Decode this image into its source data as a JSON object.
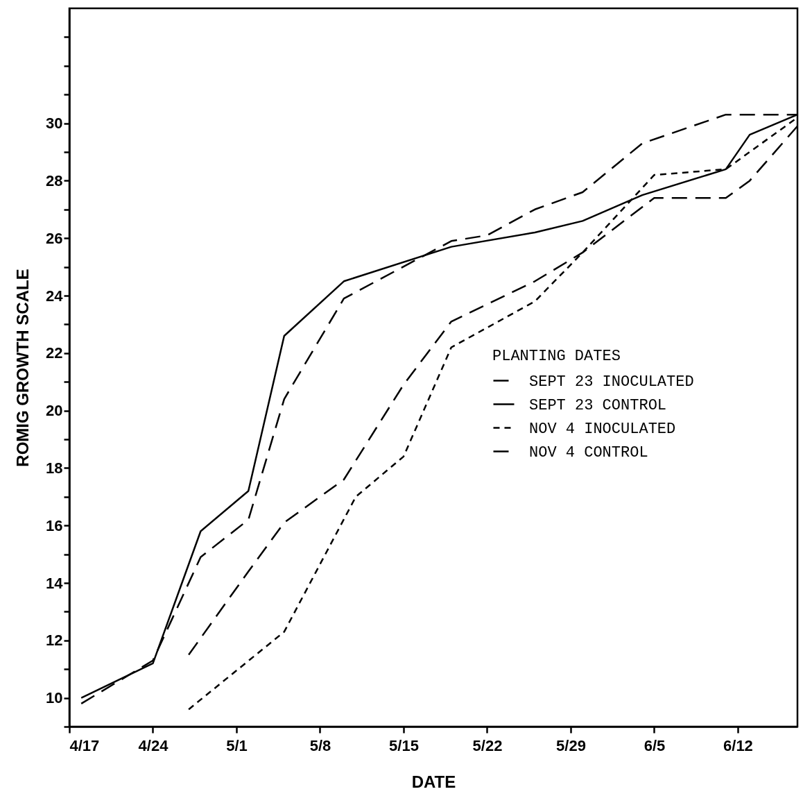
{
  "chart_data": {
    "type": "line",
    "xlabel": "DATE",
    "ylabel": "ROMIG GROWTH SCALE",
    "legend_title": "PLANTING DATES",
    "legend": "right",
    "grid": false,
    "marker": "none",
    "xlim": [
      "--04-17",
      "--06-17"
    ],
    "xticks": [
      {
        "value": "--04-17",
        "label": "4/17"
      },
      {
        "value": "--04-24",
        "label": "4/24"
      },
      {
        "value": "--05-01",
        "label": "5/1"
      },
      {
        "value": "--05-08",
        "label": "5/8"
      },
      {
        "value": "--05-15",
        "label": "5/15"
      },
      {
        "value": "--05-22",
        "label": "5/22"
      },
      {
        "value": "--05-29",
        "label": "5/29"
      },
      {
        "value": "--06-05",
        "label": "6/5"
      },
      {
        "value": "--06-12",
        "label": "6/12"
      }
    ],
    "ylim": [
      9,
      34
    ],
    "yticks": [
      {
        "value": 9,
        "label": null
      },
      10,
      {
        "value": 11,
        "label": null
      },
      12,
      {
        "value": 13,
        "label": null
      },
      14,
      {
        "value": 15,
        "label": null
      },
      16,
      {
        "value": 17,
        "label": null
      },
      18,
      {
        "value": 19,
        "label": null
      },
      20,
      {
        "value": 21,
        "label": null
      },
      22,
      {
        "value": 23,
        "label": null
      },
      24,
      {
        "value": 25,
        "label": null
      },
      26,
      {
        "value": 27,
        "label": null
      },
      28,
      {
        "value": 29,
        "label": null
      },
      30,
      {
        "value": 31,
        "label": null
      },
      {
        "value": 32,
        "label": null
      },
      {
        "value": 33,
        "label": null
      }
    ],
    "series": [
      {
        "name": "SEPT 23 INOCULATED",
        "color": "#000000",
        "line_style": "dashed",
        "x": [
          "--04-18",
          "--04-24",
          "--04-28",
          "--05-02",
          "--05-05",
          "--05-10",
          "--05-19",
          "--05-22",
          "--05-26",
          "--05-30",
          "--06-04",
          "--06-11",
          "--06-17"
        ],
        "values": [
          9.8,
          11.3,
          14.9,
          16.2,
          20.4,
          23.9,
          25.9,
          26.1,
          27.0,
          27.6,
          29.3,
          30.3,
          30.3
        ]
      },
      {
        "name": "SEPT 23 CONTROL",
        "color": "#000000",
        "line_style": "solid",
        "x": [
          "--04-18",
          "--04-24",
          "--04-28",
          "--05-02",
          "--05-05",
          "--05-10",
          "--05-19",
          "--05-26",
          "--05-30",
          "--06-04",
          "--06-11",
          "--06-13",
          "--06-17"
        ],
        "values": [
          10.0,
          11.2,
          15.8,
          17.2,
          22.6,
          24.5,
          25.7,
          26.2,
          26.6,
          27.5,
          28.4,
          29.6,
          30.3
        ]
      },
      {
        "name": "NOV 4 INOCULATED",
        "color": "#000000",
        "line_style": "dotted",
        "x": [
          "--04-27",
          "--05-05",
          "--05-11",
          "--05-15",
          "--05-19",
          "--05-26",
          "--05-30",
          "--06-05",
          "--06-11",
          "--06-17"
        ],
        "values": [
          9.6,
          12.3,
          17.0,
          18.4,
          22.2,
          23.8,
          25.5,
          28.2,
          28.4,
          30.2
        ]
      },
      {
        "name": "NOV 4 CONTROL",
        "color": "#000000",
        "line_style": "dashed",
        "x": [
          "--04-27",
          "--05-02",
          "--05-05",
          "--05-10",
          "--05-15",
          "--05-19",
          "--05-26",
          "--05-30",
          "--06-05",
          "--06-11",
          "--06-13",
          "--06-17"
        ],
        "values": [
          11.5,
          14.4,
          16.1,
          17.6,
          20.9,
          23.1,
          24.5,
          25.5,
          27.4,
          27.4,
          28.0,
          29.9
        ]
      }
    ]
  }
}
